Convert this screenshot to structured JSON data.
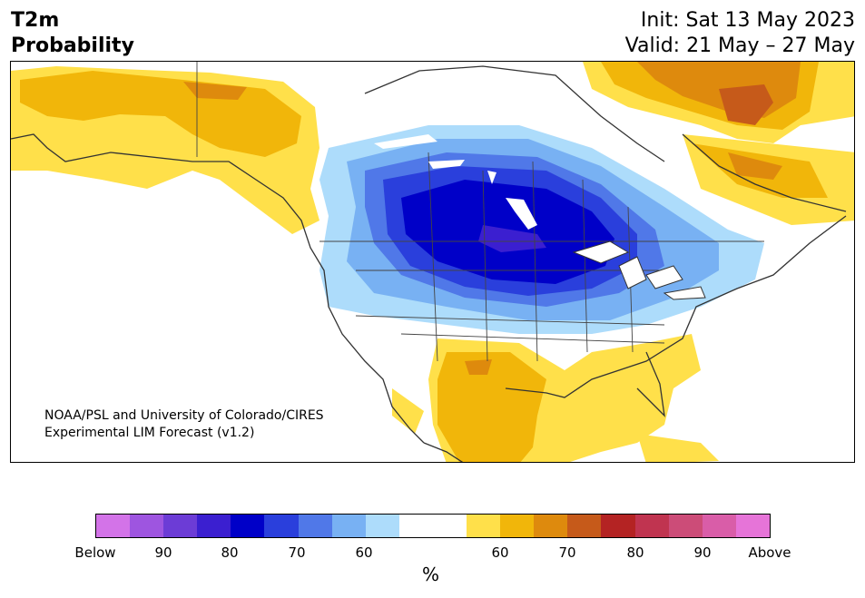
{
  "header": {
    "title_line1": "T2m",
    "title_line2": "Probability",
    "init": "Init: Sat 13 May 2023",
    "valid": "Valid: 21 May – 27 May"
  },
  "map": {
    "credit_line1": "NOAA/PSL and University of Colorado/CIRES",
    "credit_line2": "Experimental LIM Forecast (v1.2)"
  },
  "colorbar": {
    "colors": [
      "#d373e8",
      "#9e55e0",
      "#6c3cd6",
      "#3b1fd0",
      "#0000c8",
      "#2a3fdc",
      "#5078e8",
      "#78b1f3",
      "#addcfb",
      "#ffffff",
      "#ffffff",
      "#ffe04a",
      "#f1b60a",
      "#de8a0d",
      "#c65a1a",
      "#b42323",
      "#c03450",
      "#cc4c78",
      "#d95da8",
      "#e674d8"
    ],
    "tick_labels": [
      "Below",
      "90",
      "80",
      "70",
      "60",
      "60",
      "70",
      "80",
      "90",
      "Above"
    ],
    "unit": "%"
  }
}
